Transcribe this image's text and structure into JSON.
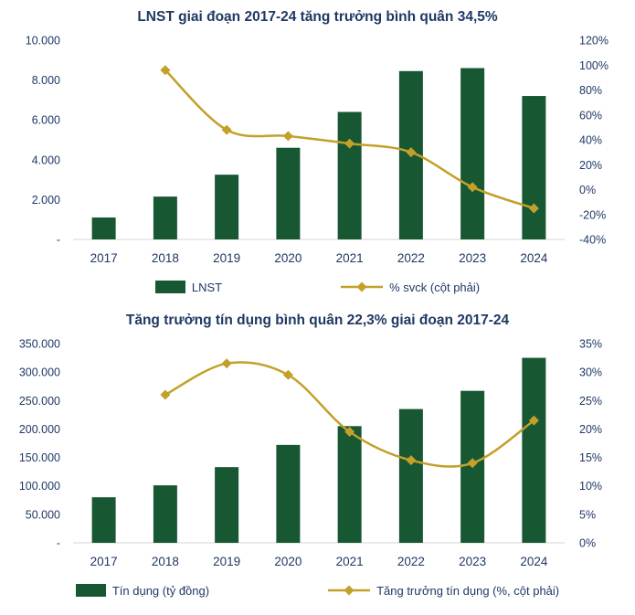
{
  "colors": {
    "bar_green": "#175732",
    "line_gold": "#C3A029",
    "title_navy": "#1F3864",
    "axis_text": "#1F3864",
    "axis_line": "#D6D6D6"
  },
  "chart_data": [
    {
      "type": "bar+line",
      "title": "LNST giai đoạn 2017-24 tăng trưởng bình quân 34,5%",
      "categories": [
        "2017",
        "2018",
        "2019",
        "2020",
        "2021",
        "2022",
        "2023",
        "2024"
      ],
      "series": [
        {
          "name": "LNST",
          "type": "bar",
          "axis": "left",
          "color_key": "bar_green",
          "values": [
            1100,
            2150,
            3250,
            4600,
            6400,
            8450,
            8600,
            7200
          ]
        },
        {
          "name": "% svck (cột phải)",
          "type": "line",
          "axis": "right",
          "color_key": "line_gold",
          "values": [
            null,
            96,
            48,
            43,
            37,
            30,
            2,
            -15
          ]
        }
      ],
      "left_axis": {
        "min": 0,
        "max": 10000,
        "tick_values": [
          10000,
          8000,
          6000,
          4000,
          2000,
          0
        ],
        "tick_labels": [
          "10.000",
          "8.000",
          "6.000",
          "4.000",
          "2.000",
          "-"
        ]
      },
      "right_axis": {
        "min": -40,
        "max": 120,
        "tick_values": [
          120,
          100,
          80,
          60,
          40,
          20,
          0,
          -20,
          -40
        ],
        "tick_labels": [
          "120%",
          "100%",
          "80%",
          "60%",
          "40%",
          "20%",
          "0%",
          "-20%",
          "-40%"
        ]
      },
      "grid": false,
      "legend_position": "bottom"
    },
    {
      "type": "bar+line",
      "title": "Tăng trưởng tín dụng bình quân 22,3% giai đoạn 2017-24",
      "categories": [
        "2017",
        "2018",
        "2019",
        "2020",
        "2021",
        "2022",
        "2023",
        "2024"
      ],
      "series": [
        {
          "name": "Tín dụng (tỷ đồng)",
          "type": "bar",
          "axis": "left",
          "color_key": "bar_green",
          "values": [
            80000,
            101000,
            133000,
            172000,
            205000,
            235000,
            267000,
            325000
          ]
        },
        {
          "name": "Tăng trưởng tín dụng (%, cột phải)",
          "type": "line",
          "axis": "right",
          "color_key": "line_gold",
          "values": [
            null,
            26,
            31.5,
            29.5,
            19.5,
            14.5,
            14,
            21.5
          ]
        }
      ],
      "left_axis": {
        "min": 0,
        "max": 350000,
        "tick_values": [
          350000,
          300000,
          250000,
          200000,
          150000,
          100000,
          50000,
          0
        ],
        "tick_labels": [
          "350.000",
          "300.000",
          "250.000",
          "200.000",
          "150.000",
          "100.000",
          "50.000",
          "-"
        ]
      },
      "right_axis": {
        "min": 0,
        "max": 35,
        "tick_values": [
          35,
          30,
          25,
          20,
          15,
          10,
          5,
          0
        ],
        "tick_labels": [
          "35%",
          "30%",
          "25%",
          "20%",
          "15%",
          "10%",
          "5%",
          "0%"
        ]
      },
      "grid": false,
      "legend_position": "bottom"
    }
  ]
}
